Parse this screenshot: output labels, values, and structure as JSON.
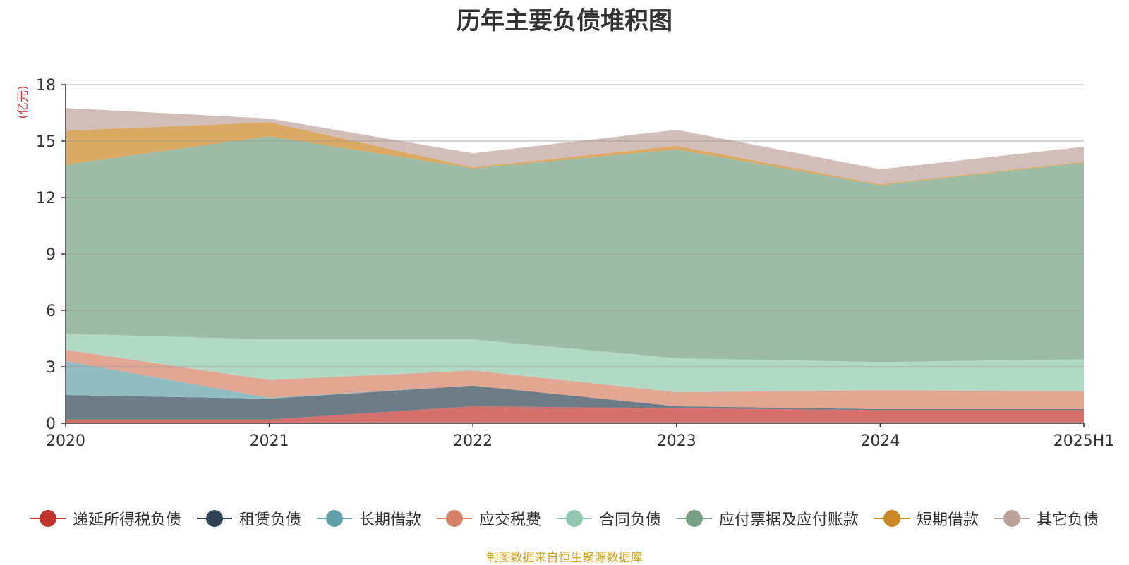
{
  "chart_data": {
    "type": "area",
    "stacked": true,
    "title": "历年主要负债堆积图",
    "unit_label": "(亿元)",
    "unit_color": "#e8383d",
    "categories": [
      "2020",
      "2021",
      "2022",
      "2023",
      "2024",
      "2025H1"
    ],
    "ylim": [
      0,
      18
    ],
    "yticks": [
      "0",
      "3",
      "6",
      "9",
      "12",
      "15",
      "18"
    ],
    "grid": true,
    "legend_position": "bottom",
    "series": [
      {
        "name": "递延所得税负债",
        "color": "#c23531",
        "values": [
          0.2,
          0.2,
          0.9,
          0.8,
          0.7,
          0.7
        ]
      },
      {
        "name": "租赁负债",
        "color": "#2f4554",
        "values": [
          1.3,
          1.1,
          1.1,
          0.1,
          0.05,
          0.05
        ]
      },
      {
        "name": "长期借款",
        "color": "#61a0a8",
        "values": [
          1.8,
          0.05,
          0,
          0,
          0,
          0
        ]
      },
      {
        "name": "应交税费",
        "color": "#d48265",
        "values": [
          0.6,
          0.95,
          0.8,
          0.75,
          1.0,
          0.95
        ]
      },
      {
        "name": "合同负债",
        "color": "#91c7ae",
        "values": [
          0.85,
          2.15,
          1.65,
          1.8,
          1.5,
          1.7
        ]
      },
      {
        "name": "应付票据及应付账款",
        "color": "#749f83",
        "values": [
          9.0,
          10.8,
          9.1,
          11.1,
          9.4,
          10.45
        ]
      },
      {
        "name": "短期借款",
        "color": "#ca8622",
        "values": [
          1.8,
          0.75,
          0.05,
          0.2,
          0.05,
          0.05
        ]
      },
      {
        "name": "其它负债",
        "color": "#bda29a",
        "values": [
          1.2,
          0.2,
          0.75,
          0.85,
          0.8,
          0.8
        ]
      }
    ]
  },
  "source_note": "制图数据来自恒生聚源数据库"
}
